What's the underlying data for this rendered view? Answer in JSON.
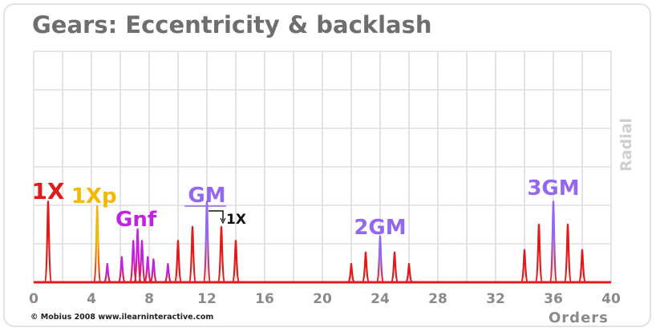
{
  "title": "Gears: Eccentricity & backlash",
  "ylabel": "Radial",
  "xlabel": "Orders",
  "copyright": "© Mobius 2008 www.ilearninteractive.com",
  "colors": {
    "grid": "#dedede",
    "axis": "#e01b1b",
    "main": "#e01b1b",
    "oneXp": "#f5b800",
    "gnf": "#c223e0",
    "gm": "#9467f0",
    "title": "#6e6e6e"
  },
  "chart_data": {
    "type": "line",
    "title": "Gears: Eccentricity & backlash",
    "xlabel": "Orders",
    "ylabel": "Radial",
    "xlim": [
      0,
      40
    ],
    "ylim": [
      0,
      1
    ],
    "x_ticks": [
      0,
      4,
      8,
      12,
      16,
      20,
      24,
      28,
      32,
      36,
      40
    ],
    "grid": true,
    "peaks": [
      {
        "x": 1,
        "y": 0.35,
        "group": "main"
      },
      {
        "x": 4.4,
        "y": 0.33,
        "group": "oneXp"
      },
      {
        "x": 5.1,
        "y": 0.08,
        "group": "gnf"
      },
      {
        "x": 6.1,
        "y": 0.11,
        "group": "gnf"
      },
      {
        "x": 6.9,
        "y": 0.18,
        "group": "gnf"
      },
      {
        "x": 7.2,
        "y": 0.23,
        "group": "gnf"
      },
      {
        "x": 7.5,
        "y": 0.18,
        "group": "gnf"
      },
      {
        "x": 7.9,
        "y": 0.11,
        "group": "gnf"
      },
      {
        "x": 8.3,
        "y": 0.1,
        "group": "gnf"
      },
      {
        "x": 9.3,
        "y": 0.08,
        "group": "gnf"
      },
      {
        "x": 10,
        "y": 0.18,
        "group": "main"
      },
      {
        "x": 11,
        "y": 0.24,
        "group": "main"
      },
      {
        "x": 12,
        "y": 0.35,
        "group": "gm"
      },
      {
        "x": 13,
        "y": 0.24,
        "group": "main"
      },
      {
        "x": 14,
        "y": 0.18,
        "group": "main"
      },
      {
        "x": 22,
        "y": 0.08,
        "group": "main"
      },
      {
        "x": 23,
        "y": 0.13,
        "group": "main"
      },
      {
        "x": 24,
        "y": 0.2,
        "group": "gm"
      },
      {
        "x": 25,
        "y": 0.13,
        "group": "main"
      },
      {
        "x": 26,
        "y": 0.08,
        "group": "main"
      },
      {
        "x": 34,
        "y": 0.14,
        "group": "main"
      },
      {
        "x": 35,
        "y": 0.25,
        "group": "main"
      },
      {
        "x": 36,
        "y": 0.35,
        "group": "gm"
      },
      {
        "x": 37,
        "y": 0.25,
        "group": "main"
      },
      {
        "x": 38,
        "y": 0.14,
        "group": "main"
      }
    ],
    "annotations": [
      {
        "text": "1X",
        "x": 1,
        "group": "main"
      },
      {
        "text": "1Xp",
        "x": 4.4,
        "group": "oneXp"
      },
      {
        "text": "Gnf",
        "x": 7.2,
        "group": "gnf"
      },
      {
        "text": "GM",
        "x": 12,
        "group": "gm"
      },
      {
        "text": "1X",
        "x": 13.5,
        "group": "black"
      },
      {
        "text": "2GM",
        "x": 24,
        "group": "gm"
      },
      {
        "text": "3GM",
        "x": 36,
        "group": "gm"
      }
    ]
  }
}
